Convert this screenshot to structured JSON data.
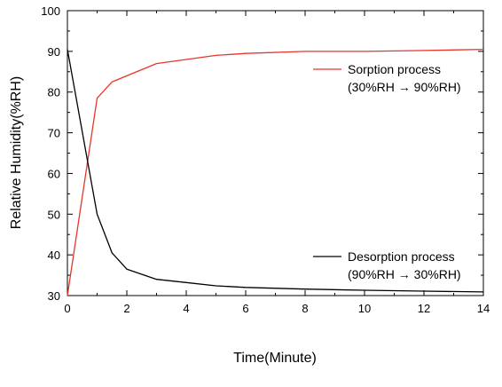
{
  "chart_data": {
    "type": "line",
    "title": "",
    "xlabel": "Time(Minute)",
    "ylabel": "Relative Humidity(%RH)",
    "xlim": [
      0,
      14
    ],
    "ylim": [
      30,
      100
    ],
    "x_ticks": [
      0,
      2,
      4,
      6,
      8,
      10,
      12,
      14
    ],
    "y_ticks": [
      30,
      40,
      50,
      60,
      70,
      80,
      90,
      100
    ],
    "grid": false,
    "legend_placement": "inside, next to each curve",
    "series": [
      {
        "name": "Sorption process",
        "condition": "(30%RH → 90%RH)",
        "color": "#e8352a",
        "x": [
          0,
          1,
          1.5,
          2,
          3,
          4,
          5,
          6,
          8,
          10,
          12,
          14
        ],
        "y": [
          30,
          78.5,
          82.5,
          84,
          87,
          88,
          89,
          89.5,
          90,
          90,
          90.2,
          90.5
        ]
      },
      {
        "name": "Desorption process",
        "condition": "(90%RH → 30%RH)",
        "color": "#000000",
        "x": [
          0,
          1,
          1.5,
          2,
          3,
          4,
          5,
          6,
          8,
          10,
          12,
          14
        ],
        "y": [
          90.5,
          50,
          40.5,
          36.5,
          34,
          33.2,
          32.4,
          32,
          31.6,
          31.3,
          31.1,
          30.9
        ]
      }
    ]
  }
}
